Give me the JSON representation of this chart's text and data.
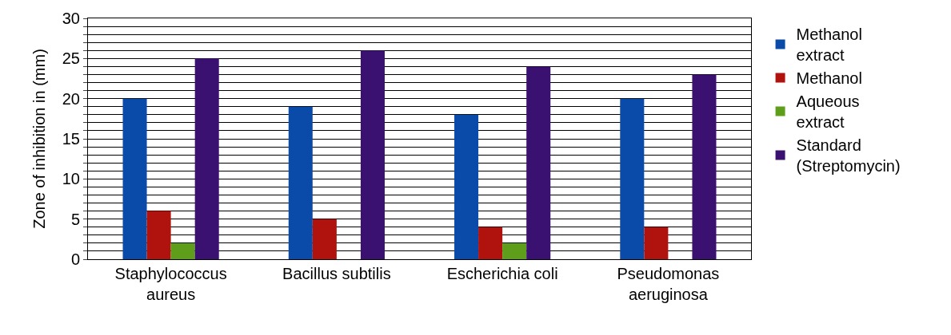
{
  "chart_data": {
    "type": "bar",
    "ylabel": "Zone of inhibition in (mm)",
    "categories": [
      "Staphylococcus aureus",
      "Bacillus subtilis",
      "Escherichia coli",
      "Pseudomonas aeruginosa"
    ],
    "series": [
      {
        "name": "Methanol extract",
        "color": "#0a4aa8",
        "values": [
          20,
          19,
          18,
          20
        ]
      },
      {
        "name": "Methanol",
        "color": "#b0120e",
        "values": [
          6,
          5,
          4,
          4
        ]
      },
      {
        "name": "Aqueous extract",
        "color": "#5e9e1a",
        "values": [
          2,
          null,
          2,
          null
        ]
      },
      {
        "name": "Standard (Streptomycin)",
        "color": "#3a1070",
        "values": [
          25,
          26,
          24,
          23
        ]
      }
    ],
    "ylim": [
      0,
      30
    ],
    "yticks": [
      0,
      {
        "value": 1,
        "label": null
      },
      {
        "value": 2,
        "label": null
      },
      {
        "value": 3,
        "label": null
      },
      {
        "value": 4,
        "label": null
      },
      5,
      {
        "value": 6,
        "label": null
      },
      {
        "value": 7,
        "label": null
      },
      {
        "value": 8,
        "label": null
      },
      {
        "value": 9,
        "label": null
      },
      10,
      {
        "value": 11,
        "label": null
      },
      {
        "value": 12,
        "label": null
      },
      {
        "value": 13,
        "label": null
      },
      {
        "value": 14,
        "label": null
      },
      15,
      {
        "value": 16,
        "label": null
      },
      {
        "value": 17,
        "label": null
      },
      {
        "value": 18,
        "label": null
      },
      {
        "value": 19,
        "label": null
      },
      20,
      {
        "value": 21,
        "label": null
      },
      {
        "value": 22,
        "label": null
      },
      {
        "value": 23,
        "label": null
      },
      {
        "value": 24,
        "label": null
      },
      25,
      {
        "value": 26,
        "label": null
      },
      {
        "value": 27,
        "label": null
      },
      {
        "value": 28,
        "label": null
      },
      {
        "value": 29,
        "label": null
      },
      30
    ],
    "grid": "y",
    "legend": "right"
  }
}
